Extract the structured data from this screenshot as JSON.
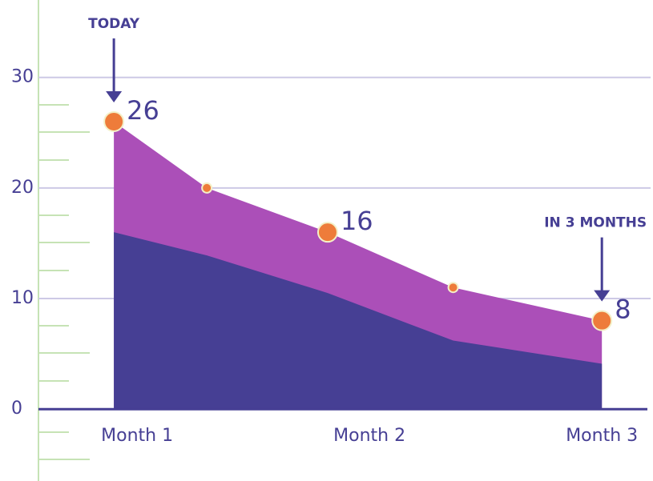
{
  "chart_data": {
    "type": "area",
    "x": [
      0.9,
      1.3,
      1.82,
      2.36,
      3.0
    ],
    "xlim": [
      0.41,
      3.22
    ],
    "xticks": [
      {
        "value": 1,
        "label": "Month 1"
      },
      {
        "value": 2,
        "label": "Month 2"
      },
      {
        "value": 3,
        "label": "Month 3"
      }
    ],
    "ylim": [
      -6.5,
      37
    ],
    "yticks": [
      0,
      10,
      20,
      30
    ],
    "grid": true,
    "series": [
      {
        "color": "#ab4fb8",
        "values": [
          26,
          20,
          16,
          11,
          8
        ],
        "value_labels": [
          "26",
          null,
          "16",
          null,
          "8"
        ]
      },
      {
        "color": "#463f94",
        "values": [
          16,
          13.9,
          10.5,
          6.2,
          4.1
        ]
      }
    ],
    "marker_color": "#ee7c3a",
    "annotations": [
      "TODAY",
      "IN 3 MONTHS"
    ]
  }
}
